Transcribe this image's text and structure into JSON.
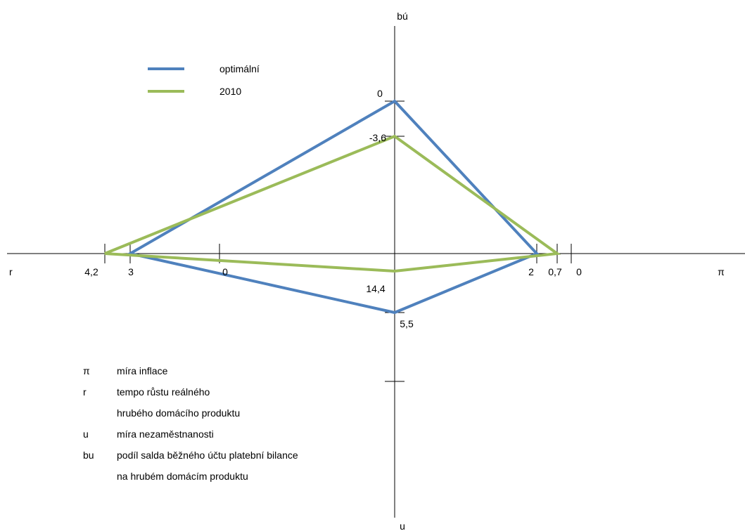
{
  "chart_data": {
    "type": "line",
    "axes": {
      "top": "bú",
      "bottom": "u",
      "left": "r",
      "right": "π"
    },
    "tick_labels": [
      {
        "name": "r-4-2",
        "text": "4,2"
      },
      {
        "name": "r-3",
        "text": "3"
      },
      {
        "name": "r-0",
        "text": "0"
      },
      {
        "name": "bu-0",
        "text": "0"
      },
      {
        "name": "bu-minus-3-6",
        "text": "-3,6"
      },
      {
        "name": "u-14-4",
        "text": "14,4"
      },
      {
        "name": "u-5-5",
        "text": "5,5"
      },
      {
        "name": "pi-2",
        "text": "2"
      },
      {
        "name": "pi-0-7",
        "text": "0,7"
      },
      {
        "name": "pi-0",
        "text": "0"
      }
    ],
    "series": [
      {
        "name": "optimální",
        "color": "#4f81bd",
        "values": {
          "bu": 0,
          "pi": 2,
          "u": 5.5,
          "r": 3
        }
      },
      {
        "name": "2010",
        "color": "#9bbb59",
        "values": {
          "bu": -3.6,
          "pi": 0.7,
          "u": 14.4,
          "r": 4.2
        }
      }
    ],
    "legend_position": "top-left",
    "grid": false
  },
  "glossary": [
    {
      "symbol": "π",
      "text": "míra inflace"
    },
    {
      "symbol": "r",
      "text": "tempo růstu reálného"
    },
    {
      "symbol": "",
      "text": "hrubého domácího produktu"
    },
    {
      "symbol": "u",
      "text": "míra nezaměstnanosti"
    },
    {
      "symbol": "bu",
      "text": "podíl salda běžného účtu platební bilance"
    },
    {
      "symbol": "",
      "text": "na hrubém domácím produktu"
    }
  ]
}
